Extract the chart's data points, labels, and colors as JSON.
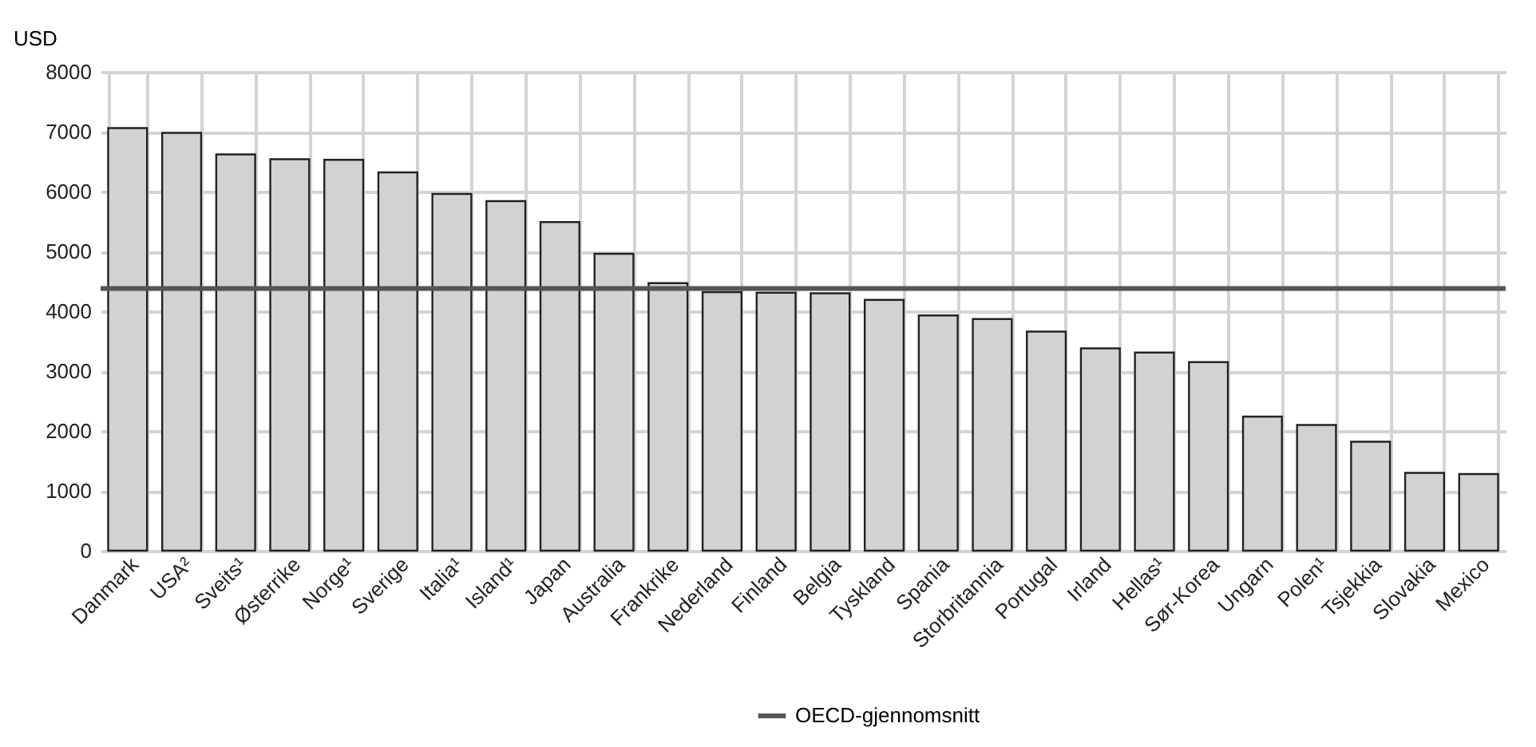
{
  "chart_data": {
    "type": "bar",
    "ylabel": "USD",
    "categories": [
      "Danmark",
      "USA²",
      "Sveits¹",
      "Østerrike",
      "Norge¹",
      "Sverige",
      "Italia¹",
      "Island¹",
      "Japan",
      "Australia",
      "Frankrike",
      "Nederland",
      "Finland",
      "Belgia",
      "Tyskland",
      "Spania",
      "Storbritannia",
      "Portugal",
      "Irland",
      "Hellas¹",
      "Sør-Korea",
      "Ungarn",
      "Polen¹",
      "Tsjekkia",
      "Slovakia",
      "Mexico"
    ],
    "values": [
      7060,
      6980,
      6620,
      6540,
      6530,
      6320,
      5960,
      5840,
      5490,
      4960,
      4470,
      4320,
      4310,
      4300,
      4190,
      3930,
      3870,
      3660,
      3380,
      3310,
      3150,
      2240,
      2100,
      1820,
      1300,
      1280
    ],
    "color": "#d1d2d4",
    "ylim": [
      0,
      8000
    ],
    "yticks": [
      0,
      1000,
      2000,
      3000,
      4000,
      5000,
      6000,
      7000,
      8000
    ],
    "grid": true,
    "legend": "bottom",
    "ref_lines": [
      {
        "axis": "y",
        "value": 4380,
        "label": "OECD-gjennomsnitt",
        "color": "#555555"
      }
    ]
  }
}
